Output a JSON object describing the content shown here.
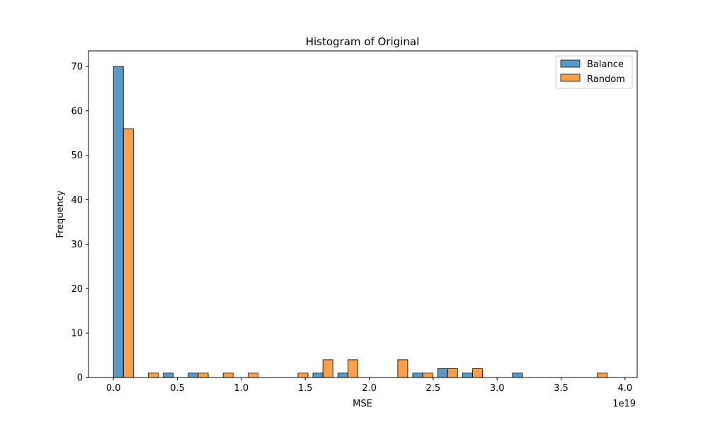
{
  "chart_data": {
    "type": "bar",
    "title": "Histogram of Original",
    "xlabel": "MSE",
    "ylabel": "Frequency",
    "x_offset_label": "1e19",
    "xlim": [
      -0.195,
      4.095
    ],
    "ylim": [
      0,
      73.5
    ],
    "xticks": [
      0.0,
      0.5,
      1.0,
      1.5,
      2.0,
      2.5,
      3.0,
      3.5,
      4.0
    ],
    "xtick_labels": [
      "0.0",
      "0.5",
      "1.0",
      "1.5",
      "2.0",
      "2.5",
      "3.0",
      "3.5",
      "4.0"
    ],
    "yticks": [
      0,
      10,
      20,
      30,
      40,
      50,
      60,
      70
    ],
    "ytick_labels": [
      "0",
      "10",
      "20",
      "30",
      "40",
      "50",
      "60",
      "70"
    ],
    "grid": false,
    "legend_position": "top-right",
    "bin_width": 0.195,
    "bin_starts": [
      0.0,
      0.195,
      0.39,
      0.585,
      0.78,
      0.975,
      1.17,
      1.365,
      1.56,
      1.755,
      1.95,
      2.145,
      2.34,
      2.535,
      2.73,
      2.925,
      3.12,
      3.315,
      3.51,
      3.705
    ],
    "series": [
      {
        "name": "Balance",
        "color": "#1f77b4",
        "values": [
          70,
          0,
          1,
          1,
          0,
          0,
          0,
          0,
          1,
          1,
          0,
          0,
          1,
          2,
          1,
          0,
          1,
          0,
          0,
          0
        ]
      },
      {
        "name": "Random",
        "color": "#ff7f0e",
        "values": [
          56,
          1,
          0,
          1,
          1,
          1,
          0,
          1,
          4,
          4,
          0,
          4,
          1,
          2,
          2,
          0,
          0,
          0,
          0,
          1
        ]
      }
    ]
  }
}
